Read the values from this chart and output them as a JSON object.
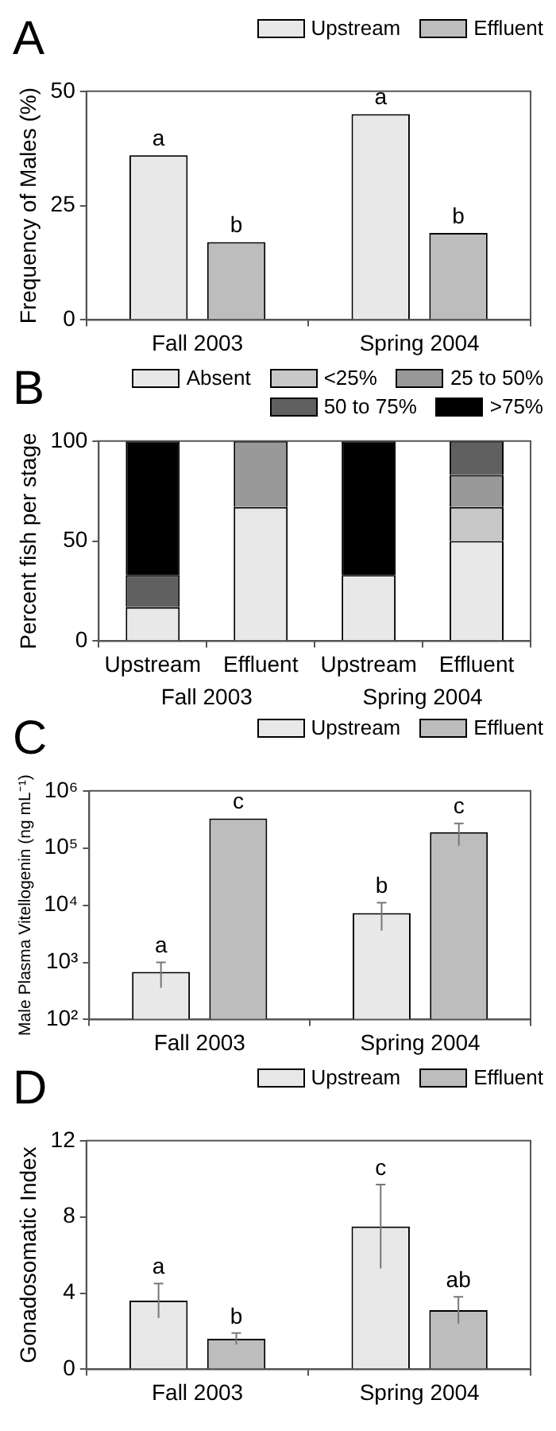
{
  "chart_data": [
    {
      "type": "bar",
      "title": "A",
      "ylabel": "Frequency of Males (%)",
      "categories": [
        "Fall 2003",
        "Spring 2004"
      ],
      "ylim": [
        0,
        50
      ],
      "yticks": [
        0,
        25,
        50
      ],
      "legend": "top",
      "series": [
        {
          "name": "Upstream",
          "color": "#e8e8e8",
          "values": [
            36,
            45
          ],
          "value_labels": [
            "a",
            "a"
          ]
        },
        {
          "name": "Effluent",
          "color": "#bdbdbd",
          "values": [
            17,
            19
          ],
          "value_labels": [
            "b",
            "b"
          ]
        }
      ]
    },
    {
      "type": "bar",
      "title": "B",
      "ylabel": "Percent fish per stage",
      "categories": [
        "Upstream",
        "Effluent",
        "Upstream",
        "Effluent"
      ],
      "annotations": [
        "Fall 2003",
        "Spring 2004"
      ],
      "stacked": true,
      "ylim": [
        0,
        100
      ],
      "yticks": [
        0,
        50,
        100
      ],
      "legend": "top",
      "series": [
        {
          "name": "Absent",
          "color": "#e8e8e8",
          "values": [
            17,
            67,
            33,
            50
          ]
        },
        {
          "name": "<25%",
          "color": "#c8c8c8",
          "values": [
            0,
            0,
            0,
            17
          ]
        },
        {
          "name": "25 to 50%",
          "color": "#999999",
          "values": [
            0,
            33,
            0,
            16
          ]
        },
        {
          "name": "50 to 75%",
          "color": "#606060",
          "values": [
            16,
            0,
            0,
            17
          ]
        },
        {
          "name": ">75%",
          "color": "#000000",
          "values": [
            67,
            0,
            67,
            0
          ]
        }
      ]
    },
    {
      "type": "bar",
      "title": "C",
      "ylabel": "Male Plasma Vitellogenin (ng mL⁻¹)",
      "categories": [
        "Fall 2003",
        "Spring 2004"
      ],
      "log": true,
      "ylim": [
        100,
        1000000
      ],
      "yticks": [
        {
          "value": 100,
          "label": "10²"
        },
        {
          "value": 1000,
          "label": "10³"
        },
        {
          "value": 10000,
          "label": "10⁴"
        },
        {
          "value": 100000,
          "label": "10⁵"
        },
        {
          "value": 1000000,
          "label": "10⁶"
        }
      ],
      "legend": "top",
      "series": [
        {
          "name": "Upstream",
          "color": "#e8e8e8",
          "values": [
            680,
            7300
          ],
          "errors": [
            320,
            3700
          ],
          "value_labels": [
            "a",
            "b"
          ]
        },
        {
          "name": "Effluent",
          "color": "#bdbdbd",
          "values": [
            330000,
            190000
          ],
          "errors": [
            null,
            80000
          ],
          "value_labels": [
            "c",
            "c"
          ]
        }
      ]
    },
    {
      "type": "bar",
      "title": "D",
      "ylabel": "Gonadosomatic Index",
      "categories": [
        "Fall 2003",
        "Spring 2004"
      ],
      "ylim": [
        0,
        12
      ],
      "yticks": [
        0,
        4,
        8,
        12
      ],
      "legend": "top",
      "series": [
        {
          "name": "Upstream",
          "color": "#e8e8e8",
          "values": [
            3.6,
            7.5
          ],
          "errors": [
            0.9,
            2.2
          ],
          "value_labels": [
            "a",
            "c"
          ]
        },
        {
          "name": "Effluent",
          "color": "#bdbdbd",
          "values": [
            1.6,
            3.1
          ],
          "errors": [
            0.3,
            0.7
          ],
          "value_labels": [
            "b",
            "ab"
          ]
        }
      ]
    }
  ]
}
